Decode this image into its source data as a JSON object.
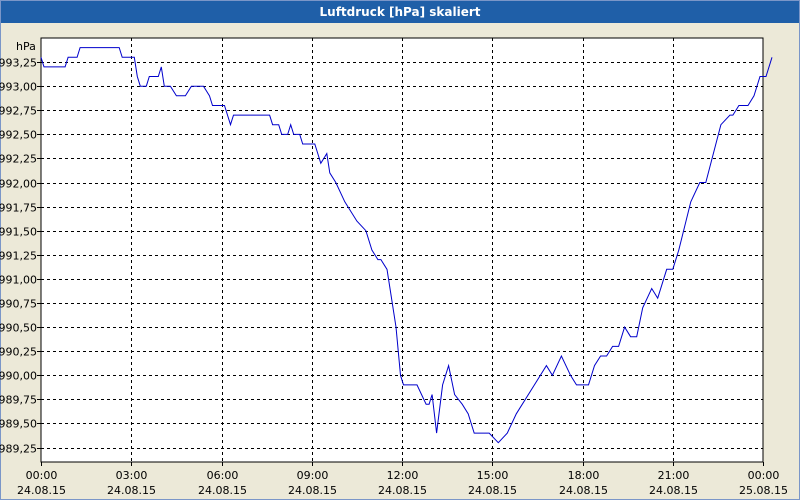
{
  "window": {
    "title": "Luftdruck [hPa] skaliert"
  },
  "chart_data": {
    "type": "line",
    "title": "Luftdruck [hPa] skaliert",
    "ylabel": "hPa",
    "xlabel": "",
    "ylim": [
      989.1,
      993.5
    ],
    "xlim": [
      0,
      24
    ],
    "grid": true,
    "y_ticks": [
      {
        "value": 993.25,
        "label": "993,25"
      },
      {
        "value": 993.0,
        "label": "993,00"
      },
      {
        "value": 992.75,
        "label": "992,75"
      },
      {
        "value": 992.5,
        "label": "992,50"
      },
      {
        "value": 992.25,
        "label": "992,25"
      },
      {
        "value": 992.0,
        "label": "992,00"
      },
      {
        "value": 991.75,
        "label": "991,75"
      },
      {
        "value": 991.5,
        "label": "991,50"
      },
      {
        "value": 991.25,
        "label": "991,25"
      },
      {
        "value": 991.0,
        "label": "991,00"
      },
      {
        "value": 990.75,
        "label": "990,75"
      },
      {
        "value": 990.5,
        "label": "990,50"
      },
      {
        "value": 990.25,
        "label": "990,25"
      },
      {
        "value": 990.0,
        "label": "990,00"
      },
      {
        "value": 989.75,
        "label": "989,75"
      },
      {
        "value": 989.5,
        "label": "989,50"
      },
      {
        "value": 989.25,
        "label": "989,25"
      }
    ],
    "x_ticks": [
      {
        "value": 0,
        "time": "00:00",
        "date": "24.08.15"
      },
      {
        "value": 3,
        "time": "03:00",
        "date": "24.08.15"
      },
      {
        "value": 6,
        "time": "06:00",
        "date": "24.08.15"
      },
      {
        "value": 9,
        "time": "09:00",
        "date": "24.08.15"
      },
      {
        "value": 12,
        "time": "12:00",
        "date": "24.08.15"
      },
      {
        "value": 15,
        "time": "15:00",
        "date": "24.08.15"
      },
      {
        "value": 18,
        "time": "18:00",
        "date": "24.08.15"
      },
      {
        "value": 21,
        "time": "21:00",
        "date": "24.08.15"
      },
      {
        "value": 24,
        "time": "00:00",
        "date": "25.08.15"
      }
    ],
    "series": [
      {
        "color": "#0000cc",
        "points": [
          [
            0.0,
            993.3
          ],
          [
            0.1,
            993.2
          ],
          [
            0.8,
            993.2
          ],
          [
            0.9,
            993.3
          ],
          [
            1.2,
            993.3
          ],
          [
            1.3,
            993.4
          ],
          [
            2.6,
            993.4
          ],
          [
            2.7,
            993.3
          ],
          [
            3.1,
            993.3
          ],
          [
            3.2,
            993.1
          ],
          [
            3.3,
            993.0
          ],
          [
            3.5,
            993.0
          ],
          [
            3.6,
            993.1
          ],
          [
            3.9,
            993.1
          ],
          [
            4.0,
            993.2
          ],
          [
            4.1,
            993.0
          ],
          [
            4.3,
            993.0
          ],
          [
            4.5,
            992.9
          ],
          [
            4.8,
            992.9
          ],
          [
            5.0,
            993.0
          ],
          [
            5.4,
            993.0
          ],
          [
            5.6,
            992.9
          ],
          [
            5.7,
            992.8
          ],
          [
            6.1,
            992.8
          ],
          [
            6.2,
            992.7
          ],
          [
            6.3,
            992.6
          ],
          [
            6.4,
            992.7
          ],
          [
            7.6,
            992.7
          ],
          [
            7.7,
            992.6
          ],
          [
            7.9,
            992.6
          ],
          [
            8.0,
            992.5
          ],
          [
            8.2,
            992.5
          ],
          [
            8.3,
            992.6
          ],
          [
            8.4,
            992.5
          ],
          [
            8.6,
            992.5
          ],
          [
            8.7,
            992.4
          ],
          [
            9.1,
            992.4
          ],
          [
            9.2,
            992.3
          ],
          [
            9.3,
            992.2
          ],
          [
            9.5,
            992.3
          ],
          [
            9.6,
            992.1
          ],
          [
            9.8,
            992.0
          ],
          [
            10.1,
            991.8
          ],
          [
            10.5,
            991.6
          ],
          [
            10.8,
            991.5
          ],
          [
            11.0,
            991.3
          ],
          [
            11.2,
            991.2
          ],
          [
            11.3,
            991.2
          ],
          [
            11.5,
            991.1
          ],
          [
            11.6,
            990.9
          ],
          [
            11.8,
            990.5
          ],
          [
            11.95,
            990.0
          ],
          [
            12.05,
            989.9
          ],
          [
            12.5,
            989.9
          ],
          [
            12.8,
            989.7
          ],
          [
            12.9,
            989.7
          ],
          [
            13.0,
            989.8
          ],
          [
            13.15,
            989.4
          ],
          [
            13.35,
            989.9
          ],
          [
            13.55,
            990.1
          ],
          [
            13.75,
            989.8
          ],
          [
            14.0,
            989.7
          ],
          [
            14.2,
            989.6
          ],
          [
            14.4,
            989.4
          ],
          [
            14.9,
            989.4
          ],
          [
            15.2,
            989.3
          ],
          [
            15.5,
            989.4
          ],
          [
            15.8,
            989.6
          ],
          [
            16.4,
            989.9
          ],
          [
            16.8,
            990.1
          ],
          [
            17.0,
            990.0
          ],
          [
            17.3,
            990.2
          ],
          [
            17.6,
            990.0
          ],
          [
            17.8,
            989.9
          ],
          [
            18.2,
            989.9
          ],
          [
            18.4,
            990.1
          ],
          [
            18.6,
            990.2
          ],
          [
            18.8,
            990.2
          ],
          [
            19.0,
            990.3
          ],
          [
            19.2,
            990.3
          ],
          [
            19.4,
            990.5
          ],
          [
            19.6,
            990.4
          ],
          [
            19.8,
            990.4
          ],
          [
            20.0,
            990.7
          ],
          [
            20.3,
            990.9
          ],
          [
            20.5,
            990.8
          ],
          [
            20.8,
            991.1
          ],
          [
            21.0,
            991.1
          ],
          [
            21.2,
            991.3
          ],
          [
            21.6,
            991.8
          ],
          [
            21.9,
            992.0
          ],
          [
            22.1,
            992.0
          ],
          [
            22.6,
            992.6
          ],
          [
            22.9,
            992.7
          ],
          [
            23.0,
            992.7
          ],
          [
            23.2,
            992.8
          ],
          [
            23.5,
            992.8
          ],
          [
            23.7,
            992.9
          ],
          [
            23.9,
            993.1
          ],
          [
            24.1,
            993.1
          ],
          [
            24.3,
            993.3
          ]
        ]
      }
    ]
  }
}
